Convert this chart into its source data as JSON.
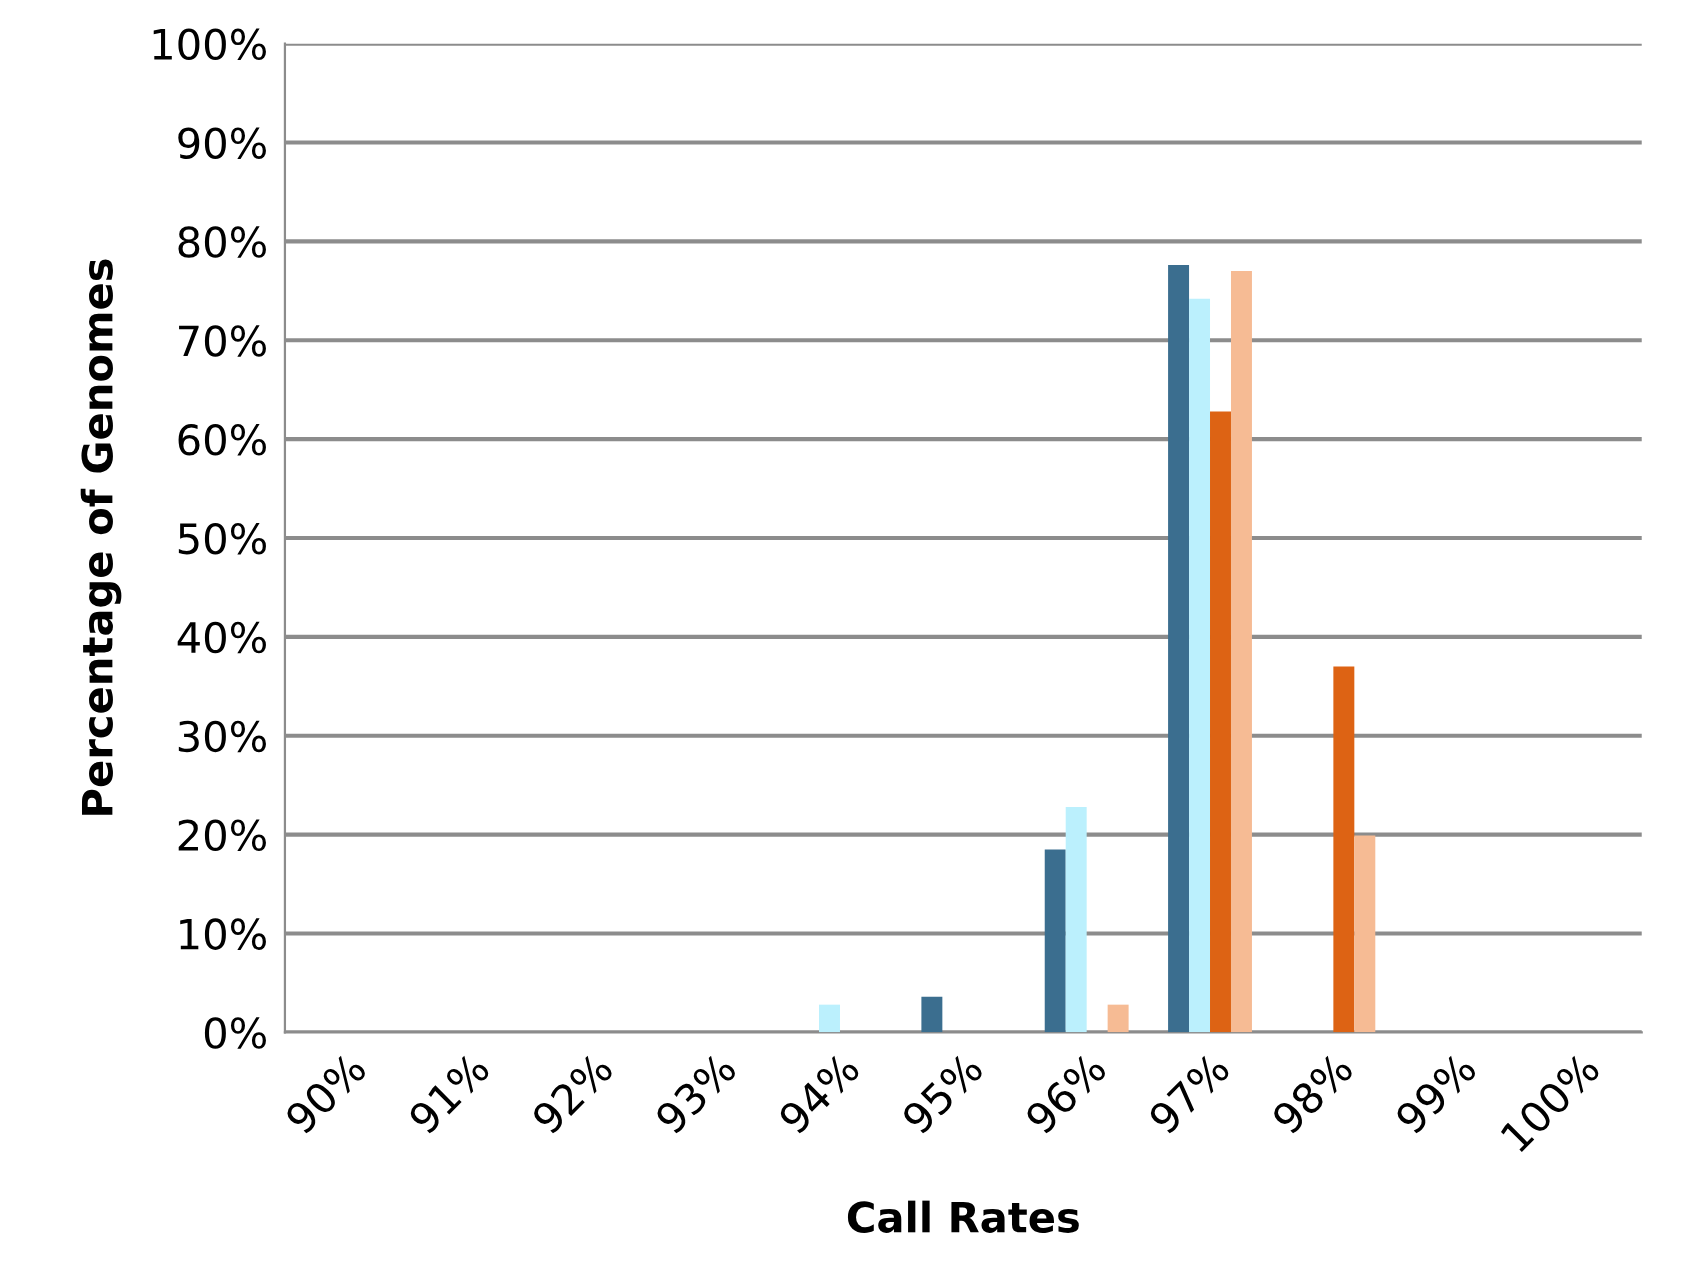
{
  "chart_data": {
    "type": "bar",
    "xlabel": "Call Rates",
    "ylabel": "Percentage of Genomes",
    "categories": [
      "90%",
      "91%",
      "92%",
      "93%",
      "94%",
      "95%",
      "96%",
      "97%",
      "98%",
      "99%",
      "100%"
    ],
    "series": [
      {
        "color": "#3b6e8f",
        "values": [
          0,
          0,
          0,
          0,
          0,
          3.6,
          18.5,
          77.6,
          0,
          0,
          0
        ]
      },
      {
        "color": "#bbf0fd",
        "values": [
          0,
          0,
          0,
          0,
          2.8,
          0,
          22.8,
          74.2,
          0,
          0,
          0
        ]
      },
      {
        "color": "#dd6314",
        "values": [
          0,
          0,
          0,
          0,
          0,
          0,
          0,
          62.8,
          37,
          0,
          0
        ]
      },
      {
        "color": "#f6bb94",
        "values": [
          0,
          0,
          0,
          0,
          0,
          0,
          2.8,
          77,
          19.9,
          0,
          0
        ]
      }
    ],
    "ylim": [
      0,
      100
    ],
    "yticks": [
      {
        "value": 0,
        "label": "0%"
      },
      {
        "value": 10,
        "label": "10%"
      },
      {
        "value": 20,
        "label": "20%"
      },
      {
        "value": 30,
        "label": "30%"
      },
      {
        "value": 40,
        "label": "40%"
      },
      {
        "value": 50,
        "label": "50%"
      },
      {
        "value": 60,
        "label": "60%"
      },
      {
        "value": 70,
        "label": "70%"
      },
      {
        "value": 80,
        "label": "80%"
      },
      {
        "value": 90,
        "label": "90%"
      },
      {
        "value": 100,
        "label": "100%"
      }
    ],
    "grid": "y"
  }
}
